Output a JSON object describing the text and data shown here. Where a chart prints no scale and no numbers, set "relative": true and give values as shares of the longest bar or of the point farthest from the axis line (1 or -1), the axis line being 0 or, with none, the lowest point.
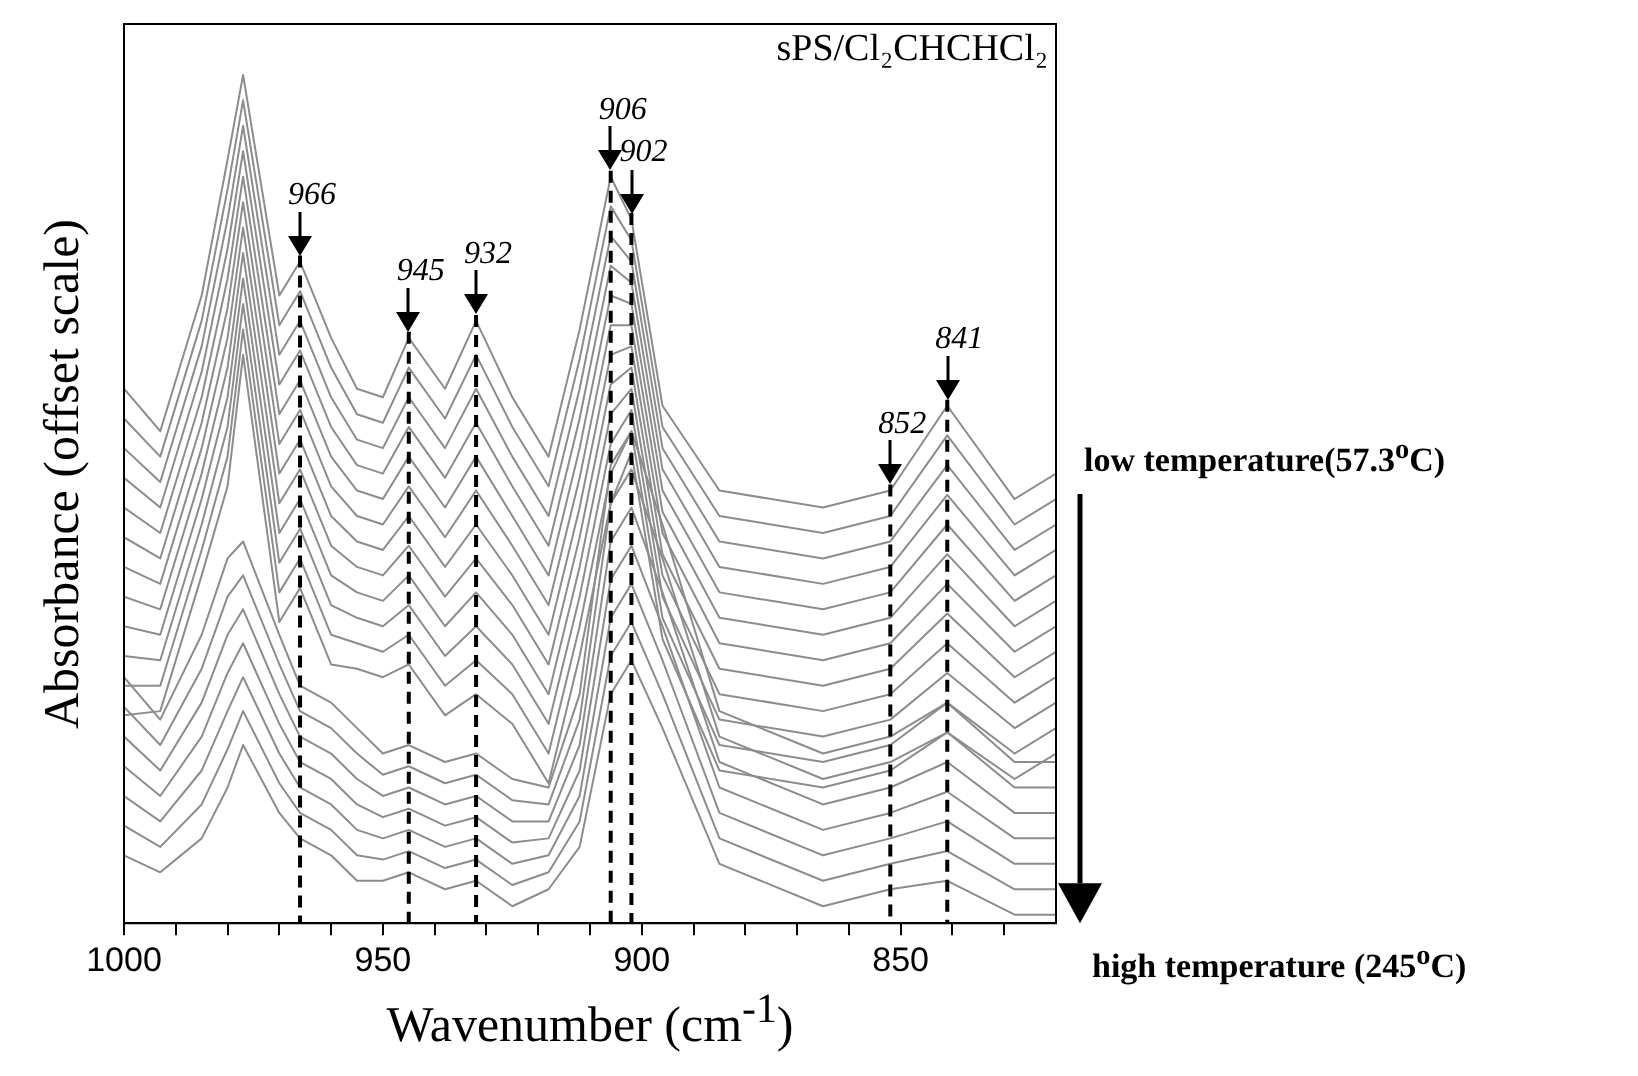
{
  "chart_data": {
    "type": "line",
    "relative": true,
    "xlabel": "Wavenumber (cm$^{-1}$)",
    "ylabel": "Absorbance (offset scale)",
    "annotations": [
      "sPS/Cl₂CHCHCl₂",
      "low temperature(57.3$^{o}$C)",
      "high temperature (245$^{o}$C)"
    ],
    "xlim": [
      1000,
      820
    ],
    "xticks": [
      1000,
      {
        "value": 990,
        "label": null
      },
      {
        "value": 980,
        "label": null
      },
      {
        "value": 970,
        "label": null
      },
      {
        "value": 960,
        "label": null
      },
      950,
      {
        "value": 940,
        "label": null
      },
      {
        "value": 930,
        "label": null
      },
      {
        "value": 920,
        "label": null
      },
      {
        "value": 910,
        "label": null
      },
      900,
      {
        "value": 890,
        "label": null
      },
      {
        "value": 880,
        "label": null
      },
      {
        "value": 870,
        "label": null
      },
      {
        "value": 860,
        "label": null
      },
      850,
      {
        "value": 840,
        "label": null
      },
      {
        "value": 830,
        "label": null
      }
    ],
    "marker": "none",
    "line_style": "solid",
    "x": [
      1000,
      993,
      985,
      980,
      977,
      970,
      966,
      960,
      955,
      950,
      945,
      938,
      932,
      925,
      918,
      912,
      906,
      902,
      896,
      885,
      865,
      852,
      841,
      828,
      820
    ],
    "series": [
      {
        "color": "#8c8c8c",
        "values": [
          0.63,
          0.58,
          0.74,
          0.9,
          1,
          0.74,
          0.78,
          0.69,
          0.63,
          0.62,
          0.69,
          0.63,
          0.71,
          0.62,
          0.55,
          0.7,
          0.88,
          0.83,
          0.61,
          0.51,
          0.49,
          0.51,
          0.61,
          0.5,
          0.53
        ]
      },
      {
        "color": "#8c8c8c",
        "values": [
          0.595,
          0.55,
          0.71,
          0.865,
          0.97,
          0.705,
          0.745,
          0.655,
          0.6,
          0.59,
          0.655,
          0.595,
          0.67,
          0.585,
          0.515,
          0.665,
          0.845,
          0.805,
          0.585,
          0.48,
          0.46,
          0.48,
          0.575,
          0.47,
          0.5
        ]
      },
      {
        "color": "#8c8c8c",
        "values": [
          0.56,
          0.52,
          0.68,
          0.83,
          0.94,
          0.67,
          0.71,
          0.62,
          0.57,
          0.56,
          0.62,
          0.56,
          0.63,
          0.55,
          0.48,
          0.63,
          0.81,
          0.78,
          0.56,
          0.45,
          0.43,
          0.45,
          0.54,
          0.44,
          0.47
        ]
      },
      {
        "color": "#8c8c8c",
        "values": [
          0.525,
          0.49,
          0.65,
          0.795,
          0.91,
          0.635,
          0.675,
          0.585,
          0.54,
          0.53,
          0.585,
          0.525,
          0.59,
          0.515,
          0.445,
          0.595,
          0.775,
          0.755,
          0.535,
          0.42,
          0.4,
          0.42,
          0.505,
          0.41,
          0.44
        ]
      },
      {
        "color": "#8c8c8c",
        "values": [
          0.49,
          0.46,
          0.62,
          0.76,
          0.88,
          0.6,
          0.64,
          0.55,
          0.51,
          0.5,
          0.55,
          0.49,
          0.55,
          0.48,
          0.41,
          0.56,
          0.74,
          0.73,
          0.51,
          0.39,
          0.37,
          0.39,
          0.47,
          0.38,
          0.41
        ]
      },
      {
        "color": "#8c8c8c",
        "values": [
          0.455,
          0.43,
          0.59,
          0.725,
          0.85,
          0.565,
          0.605,
          0.515,
          0.48,
          0.47,
          0.515,
          0.455,
          0.51,
          0.445,
          0.375,
          0.525,
          0.705,
          0.705,
          0.485,
          0.36,
          0.34,
          0.36,
          0.435,
          0.35,
          0.38
        ]
      },
      {
        "color": "#8c8c8c",
        "values": [
          0.42,
          0.4,
          0.56,
          0.69,
          0.82,
          0.53,
          0.57,
          0.48,
          0.45,
          0.44,
          0.48,
          0.42,
          0.47,
          0.41,
          0.34,
          0.49,
          0.67,
          0.68,
          0.46,
          0.33,
          0.31,
          0.33,
          0.4,
          0.32,
          0.35
        ]
      },
      {
        "color": "#8c8c8c",
        "values": [
          0.385,
          0.37,
          0.53,
          0.655,
          0.79,
          0.495,
          0.535,
          0.445,
          0.42,
          0.41,
          0.445,
          0.385,
          0.43,
          0.375,
          0.305,
          0.455,
          0.635,
          0.655,
          0.435,
          0.3,
          0.28,
          0.3,
          0.365,
          0.29,
          0.32
        ]
      },
      {
        "color": "#8c8c8c",
        "values": [
          0.35,
          0.34,
          0.5,
          0.62,
          0.76,
          0.46,
          0.5,
          0.41,
          0.39,
          0.38,
          0.41,
          0.35,
          0.39,
          0.34,
          0.27,
          0.42,
          0.6,
          0.63,
          0.41,
          0.27,
          0.25,
          0.27,
          0.33,
          0.26,
          0.29
        ]
      },
      {
        "color": "#8c8c8c",
        "values": [
          0.315,
          0.31,
          0.47,
          0.585,
          0.73,
          0.425,
          0.465,
          0.375,
          0.36,
          0.35,
          0.375,
          0.315,
          0.35,
          0.305,
          0.235,
          0.385,
          0.565,
          0.605,
          0.385,
          0.24,
          0.22,
          0.24,
          0.295,
          0.23,
          0.26
        ]
      },
      {
        "color": "#8c8c8c",
        "values": [
          0.28,
          0.28,
          0.44,
          0.55,
          0.7,
          0.39,
          0.43,
          0.34,
          0.33,
          0.32,
          0.34,
          0.28,
          0.31,
          0.27,
          0.2,
          0.35,
          0.53,
          0.58,
          0.36,
          0.21,
          0.19,
          0.21,
          0.26,
          0.2,
          0.23
        ]
      },
      {
        "color": "#8c8c8c",
        "values": [
          0.245,
          0.25,
          0.41,
          0.515,
          0.67,
          0.355,
          0.395,
          0.305,
          0.3,
          0.29,
          0.305,
          0.245,
          0.27,
          0.235,
          0.165,
          0.315,
          0.495,
          0.555,
          0.335,
          0.18,
          0.16,
          0.18,
          0.225,
          0.17,
          0.2
        ]
      },
      {
        "color": "#8c8c8c",
        "values": [
          0.29,
          0.24,
          0.34,
          0.43,
          0.45,
          0.34,
          0.28,
          0.26,
          0.23,
          0.2,
          0.21,
          0.19,
          0.2,
          0.17,
          0.16,
          0.27,
          0.54,
          0.58,
          0.47,
          0.25,
          0.2,
          0.22,
          0.26,
          0.19,
          0.19
        ]
      },
      {
        "color": "#8c8c8c",
        "values": [
          0.255,
          0.21,
          0.3,
          0.385,
          0.41,
          0.305,
          0.25,
          0.23,
          0.2,
          0.175,
          0.185,
          0.165,
          0.175,
          0.145,
          0.14,
          0.24,
          0.495,
          0.535,
          0.43,
          0.22,
          0.17,
          0.19,
          0.225,
          0.16,
          0.16
        ]
      },
      {
        "color": "#8c8c8c",
        "values": [
          0.22,
          0.18,
          0.26,
          0.34,
          0.37,
          0.27,
          0.22,
          0.2,
          0.17,
          0.15,
          0.16,
          0.14,
          0.15,
          0.12,
          0.12,
          0.21,
          0.45,
          0.49,
          0.39,
          0.19,
          0.14,
          0.16,
          0.19,
          0.13,
          0.13
        ]
      },
      {
        "color": "#8c8c8c",
        "values": [
          0.185,
          0.15,
          0.22,
          0.295,
          0.33,
          0.235,
          0.19,
          0.17,
          0.14,
          0.125,
          0.135,
          0.115,
          0.125,
          0.095,
          0.1,
          0.18,
          0.405,
          0.445,
          0.35,
          0.16,
          0.11,
          0.13,
          0.155,
          0.1,
          0.1
        ]
      },
      {
        "color": "#8c8c8c",
        "values": [
          0.15,
          0.12,
          0.18,
          0.25,
          0.29,
          0.2,
          0.16,
          0.14,
          0.11,
          0.1,
          0.11,
          0.09,
          0.1,
          0.07,
          0.08,
          0.15,
          0.36,
          0.4,
          0.31,
          0.13,
          0.08,
          0.1,
          0.12,
          0.07,
          0.07
        ]
      },
      {
        "color": "#8c8c8c",
        "values": [
          0.115,
          0.09,
          0.14,
          0.205,
          0.25,
          0.165,
          0.13,
          0.11,
          0.08,
          0.075,
          0.085,
          0.065,
          0.075,
          0.045,
          0.06,
          0.12,
          0.315,
          0.355,
          0.27,
          0.1,
          0.05,
          0.07,
          0.085,
          0.04,
          0.04
        ]
      },
      {
        "color": "#8c8c8c",
        "values": [
          0.08,
          0.06,
          0.1,
          0.16,
          0.21,
          0.13,
          0.1,
          0.08,
          0.05,
          0.05,
          0.06,
          0.04,
          0.05,
          0.02,
          0.04,
          0.09,
          0.27,
          0.31,
          0.23,
          0.07,
          0.02,
          0.04,
          0.05,
          0.01,
          0.01
        ]
      }
    ],
    "ref_lines": [
      {
        "axis": "x",
        "value": 966,
        "label": "966",
        "line_style": "dashed",
        "color": "#000000"
      },
      {
        "axis": "x",
        "value": 945,
        "label": "945",
        "line_style": "dashed",
        "color": "#000000"
      },
      {
        "axis": "x",
        "value": 932,
        "label": "932",
        "line_style": "dashed",
        "color": "#000000"
      },
      {
        "axis": "x",
        "value": 906,
        "label": "906",
        "line_style": "dashed",
        "color": "#000000"
      },
      {
        "axis": "x",
        "value": 902,
        "label": "902",
        "line_style": "dashed",
        "color": "#000000"
      },
      {
        "axis": "x",
        "value": 852,
        "label": "852",
        "line_style": "dashed",
        "color": "#000000"
      },
      {
        "axis": "x",
        "value": 841,
        "label": "841",
        "line_style": "dashed",
        "color": "#000000"
      }
    ]
  }
}
